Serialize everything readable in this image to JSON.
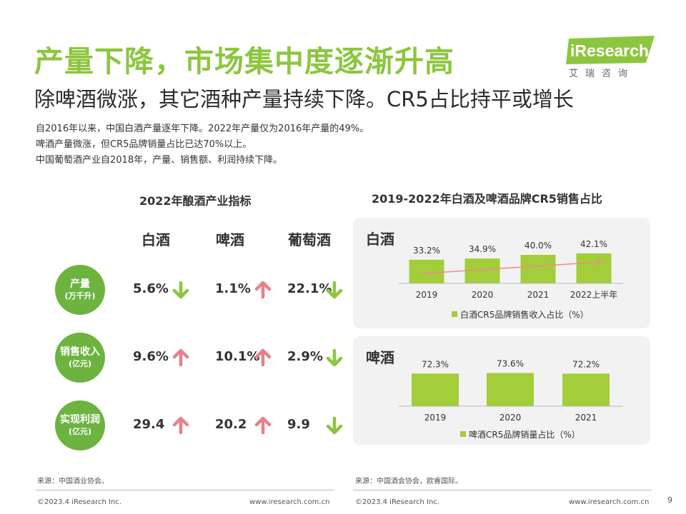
{
  "header": {
    "title": "产量下降，市场集中度逐渐升高",
    "subtitle": "除啤酒微涨，其它酒种产量持续下降。CR5占比持平或增长",
    "intro": [
      "自2016年以来，中国白酒产量逐年下降。2022年产量仅为2016年产量的49%。",
      "啤酒产量微涨，但CR5品牌销量占比已达70%以上。",
      "中国葡萄酒产业自2018年，产量、销售额、利润持续下降。"
    ]
  },
  "logo": {
    "text": "iResearch",
    "cn": "艾瑞咨询",
    "color": "#8cc63f"
  },
  "indicators": {
    "title": "2022年酿酒产业指标",
    "columns": [
      "白酒",
      "啤酒",
      "葡萄酒"
    ],
    "rows": [
      {
        "label": "产量",
        "unit": "(万千升)",
        "cells": [
          {
            "value": "5.6%",
            "dir": "down"
          },
          {
            "value": "1.1%",
            "dir": "up"
          },
          {
            "value": "22.1%",
            "dir": "down"
          }
        ]
      },
      {
        "label": "销售收入",
        "unit": "(亿元)",
        "cells": [
          {
            "value": "9.6%",
            "dir": "up"
          },
          {
            "value": "10.1%",
            "dir": "up"
          },
          {
            "value": "2.9%",
            "dir": "down"
          }
        ]
      },
      {
        "label": "实现利润",
        "unit": "(亿元)",
        "cells": [
          {
            "value": "29.4",
            "dir": "up"
          },
          {
            "value": "20.2",
            "dir": "up"
          },
          {
            "value": "9.9",
            "dir": "down"
          }
        ]
      }
    ],
    "colors": {
      "up": "#e8808a",
      "down": "#8cc63f",
      "circle": "#6cb33f"
    }
  },
  "cr5": {
    "title": "2019-2022年白酒及啤酒品牌CR5销售占比"
  },
  "chart_data": [
    {
      "type": "bar",
      "panel_label": "白酒",
      "categories": [
        "2019",
        "2020",
        "2021",
        "2022上半年"
      ],
      "series": [
        {
          "name": "白酒CR5品牌销售收入占比（%）",
          "values": [
            33.2,
            34.9,
            40.0,
            42.1
          ]
        }
      ],
      "data_labels": [
        "33.2%",
        "34.9%",
        "40.0%",
        "42.1%"
      ],
      "legend": "bottom",
      "trend_arrow": true,
      "bar_color": "#a3cd39",
      "trend_color": "#f08a90",
      "ylim": [
        0,
        55
      ]
    },
    {
      "type": "bar",
      "panel_label": "啤酒",
      "categories": [
        "2019",
        "2020",
        "2021"
      ],
      "series": [
        {
          "name": "啤酒CR5品牌销量占比（%）",
          "values": [
            72.3,
            73.6,
            72.2
          ]
        }
      ],
      "data_labels": [
        "72.3%",
        "73.6%",
        "72.2%"
      ],
      "legend": "bottom",
      "bar_color": "#a3cd39",
      "ylim": [
        0,
        95
      ]
    }
  ],
  "sources": {
    "left": "来源：中国酒业协会。",
    "right": "来源：中国酒会协会，欧睿国际。"
  },
  "footer": {
    "left_copyright": "©2023.4 iResearch Inc.",
    "left_url": "www.iresearch.com.cn",
    "right_copyright": "©2023.4 iResearch Inc.",
    "right_url": "www.iresearch.com.cn",
    "page": "9"
  }
}
